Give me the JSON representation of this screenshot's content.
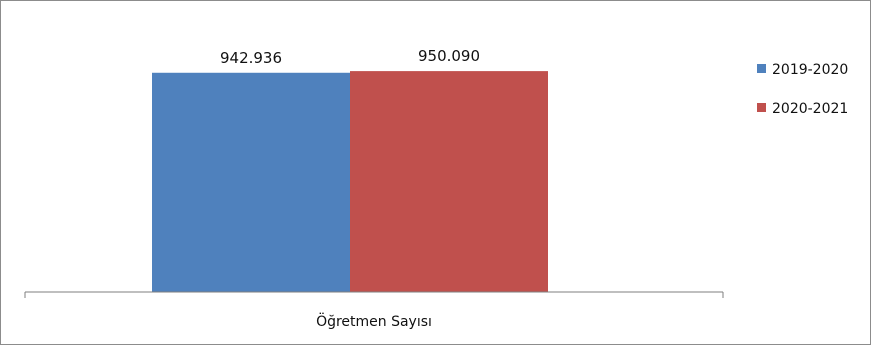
{
  "chart_data": {
    "type": "bar",
    "categories": [
      "Öğretmen Sayısı"
    ],
    "series": [
      {
        "name": "2019-2020",
        "values": [
          942936
        ],
        "display_value": "942.936",
        "color": "#4f81bd"
      },
      {
        "name": "2020-2021",
        "values": [
          950090
        ],
        "display_value": "950.090",
        "color": "#c0504d"
      }
    ],
    "xlabel": "",
    "ylabel": "",
    "ylim": [
      0,
      1200000
    ],
    "grid": false,
    "legend_position": "right"
  }
}
